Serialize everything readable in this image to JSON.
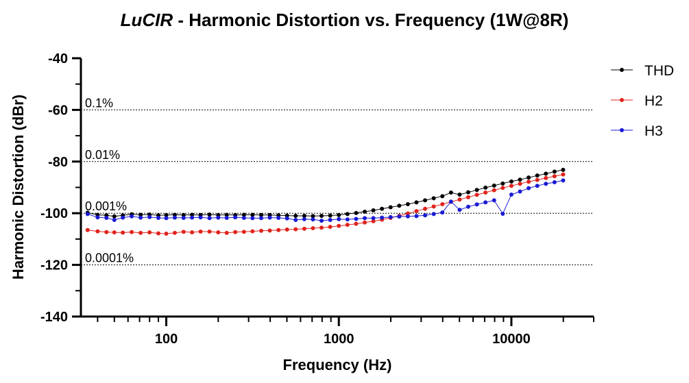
{
  "chart_data": {
    "type": "line",
    "title_italic": "LuCIR",
    "title_rest": " - Harmonic Distortion vs. Frequency (1W@8R)",
    "xlabel": "Frequency (Hz)",
    "ylabel": "Harmonic Distortion (dBr)",
    "x_scale": "log",
    "xlim": [
      32,
      30000
    ],
    "ylim": [
      -140,
      -40
    ],
    "x_ticks": [
      100,
      1000,
      10000
    ],
    "x_tick_labels": [
      "100",
      "1000",
      "10000"
    ],
    "y_ticks": [
      -140,
      -120,
      -100,
      -80,
      -60,
      -40
    ],
    "y_tick_labels": [
      "-140",
      "-120",
      "-100",
      "-80",
      "-60",
      "-40"
    ],
    "reference_lines": [
      {
        "y": -60,
        "label": "0.1%"
      },
      {
        "y": -80,
        "label": "0.01%"
      },
      {
        "y": -100,
        "label": "0.001%"
      },
      {
        "y": -120,
        "label": "0.0001%"
      }
    ],
    "legend_position": "right",
    "grid": false,
    "series": [
      {
        "name": "THD",
        "color": "#000000",
        "x": [
          35,
          40,
          45,
          50,
          56,
          63,
          71,
          80,
          90,
          100,
          112,
          126,
          141,
          158,
          178,
          200,
          224,
          251,
          282,
          316,
          355,
          398,
          447,
          501,
          562,
          631,
          708,
          794,
          891,
          1000,
          1122,
          1259,
          1413,
          1585,
          1778,
          1995,
          2239,
          2512,
          2818,
          3162,
          3548,
          3981,
          4467,
          5012,
          5623,
          6310,
          7079,
          7943,
          8913,
          10000,
          11220,
          12589,
          14125,
          15849,
          17783,
          19953
        ],
        "y": [
          -99.8,
          -100.6,
          -100.8,
          -101.2,
          -100.8,
          -100.4,
          -100.6,
          -100.5,
          -100.8,
          -100.7,
          -100.6,
          -100.7,
          -100.6,
          -100.7,
          -100.5,
          -100.7,
          -100.6,
          -100.7,
          -100.6,
          -100.6,
          -100.7,
          -100.7,
          -100.8,
          -100.9,
          -101.0,
          -101.0,
          -101.1,
          -101.0,
          -100.9,
          -100.7,
          -100.3,
          -99.9,
          -99.4,
          -98.9,
          -98.3,
          -97.7,
          -97.1,
          -96.5,
          -95.8,
          -95.0,
          -94.2,
          -93.4,
          -92.0,
          -92.8,
          -91.9,
          -91.0,
          -90.1,
          -89.3,
          -88.5,
          -87.7,
          -87.0,
          -86.2,
          -85.4,
          -84.7,
          -83.9,
          -83.2
        ]
      },
      {
        "name": "H2",
        "color": "#e0231c",
        "x": [
          35,
          40,
          45,
          50,
          56,
          63,
          71,
          80,
          90,
          100,
          112,
          126,
          141,
          158,
          178,
          200,
          224,
          251,
          282,
          316,
          355,
          398,
          447,
          501,
          562,
          631,
          708,
          794,
          891,
          1000,
          1122,
          1259,
          1413,
          1585,
          1778,
          1995,
          2239,
          2512,
          2818,
          3162,
          3548,
          3981,
          4467,
          5012,
          5623,
          6310,
          7079,
          7943,
          8913,
          10000,
          11220,
          12589,
          14125,
          15849,
          17783,
          19953
        ],
        "y": [
          -106.5,
          -107.0,
          -107.3,
          -107.4,
          -107.5,
          -107.3,
          -107.6,
          -107.4,
          -107.8,
          -107.9,
          -107.6,
          -107.2,
          -107.4,
          -107.1,
          -107.1,
          -107.4,
          -107.6,
          -107.3,
          -107.2,
          -107.0,
          -106.8,
          -106.7,
          -106.5,
          -106.3,
          -106.2,
          -106.0,
          -105.8,
          -105.6,
          -105.3,
          -104.9,
          -104.5,
          -104.1,
          -103.6,
          -103.1,
          -102.5,
          -101.8,
          -101.0,
          -100.1,
          -99.2,
          -98.3,
          -97.4,
          -96.5,
          -95.6,
          -94.7,
          -93.8,
          -92.9,
          -92.0,
          -91.1,
          -90.2,
          -89.4,
          -88.6,
          -87.8,
          -87.1,
          -86.4,
          -85.7,
          -85.0
        ]
      },
      {
        "name": "H3",
        "color": "#1a1ad6",
        "x": [
          35,
          40,
          45,
          50,
          56,
          63,
          71,
          80,
          90,
          100,
          112,
          126,
          141,
          158,
          178,
          200,
          224,
          251,
          282,
          316,
          355,
          398,
          447,
          501,
          562,
          631,
          708,
          794,
          891,
          1000,
          1122,
          1259,
          1413,
          1585,
          1778,
          1995,
          2239,
          2512,
          2818,
          3162,
          3548,
          3981,
          4467,
          5012,
          5623,
          6310,
          7079,
          7943,
          8913,
          10000,
          11220,
          12589,
          14125,
          15849,
          17783,
          19953
        ],
        "y": [
          -100.3,
          -101.6,
          -101.8,
          -102.6,
          -101.7,
          -101.2,
          -101.7,
          -101.5,
          -101.8,
          -101.9,
          -101.7,
          -101.8,
          -101.7,
          -101.6,
          -101.9,
          -101.7,
          -101.8,
          -101.6,
          -101.8,
          -101.9,
          -101.9,
          -101.7,
          -101.8,
          -102.0,
          -102.6,
          -102.3,
          -102.4,
          -102.9,
          -102.6,
          -102.3,
          -102.4,
          -102.2,
          -101.9,
          -101.9,
          -101.7,
          -101.5,
          -101.3,
          -101.2,
          -101.1,
          -100.8,
          -100.3,
          -99.7,
          -95.5,
          -98.7,
          -97.5,
          -96.6,
          -95.8,
          -95.0,
          -100.2,
          -92.8,
          -91.6,
          -90.3,
          -89.4,
          -88.6,
          -88.0,
          -87.3
        ]
      }
    ]
  }
}
